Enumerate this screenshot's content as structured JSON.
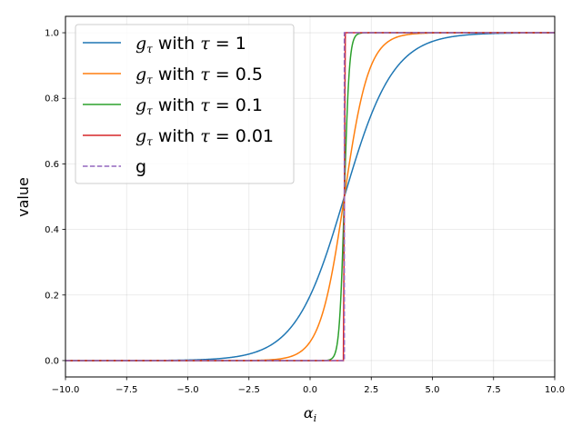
{
  "chart_data": {
    "type": "line",
    "xlabel_symbol": "α",
    "xlabel_sub": "i",
    "ylabel": "value",
    "xlim": [
      -10,
      10
    ],
    "ylim": [
      -0.05,
      1.05
    ],
    "xticks": [
      -10,
      -7.5,
      -5,
      -2.5,
      0,
      2.5,
      5,
      7.5,
      10
    ],
    "xtick_labels": [
      "−10.0",
      "−7.5",
      "−5.0",
      "−2.5",
      "0.0",
      "2.5",
      "5.0",
      "7.5",
      "10.0"
    ],
    "yticks": [
      0,
      0.2,
      0.4,
      0.6,
      0.8,
      1.0
    ],
    "ytick_labels": [
      "0.0",
      "0.2",
      "0.4",
      "0.6",
      "0.8",
      "1.0"
    ],
    "grid": true,
    "legend_position": "upper-left",
    "step_threshold": 1.4,
    "series": [
      {
        "name": "g_τ with τ = 1",
        "legend": {
          "g": "g",
          "sub": "τ",
          "mid": " with ",
          "tau": "τ",
          "eq": " = ",
          "val": "1"
        },
        "tau": 1,
        "color": "#1f77b4",
        "dashed": false
      },
      {
        "name": "g_τ with τ = 0.5",
        "legend": {
          "g": "g",
          "sub": "τ",
          "mid": " with ",
          "tau": "τ",
          "eq": " = ",
          "val": "0.5"
        },
        "tau": 0.5,
        "color": "#ff7f0e",
        "dashed": false
      },
      {
        "name": "g_τ with τ = 0.1",
        "legend": {
          "g": "g",
          "sub": "τ",
          "mid": " with ",
          "tau": "τ",
          "eq": " = ",
          "val": "0.1"
        },
        "tau": 0.1,
        "color": "#2ca02c",
        "dashed": false
      },
      {
        "name": "g_τ with τ = 0.01",
        "legend": {
          "g": "g",
          "sub": "τ",
          "mid": " with ",
          "tau": "τ",
          "eq": " = ",
          "val": "0.01"
        },
        "tau": 0.01,
        "color": "#d62728",
        "dashed": false
      },
      {
        "name": "g",
        "legend": {
          "plain": "g"
        },
        "tau": 0,
        "color": "#9467bd",
        "dashed": true
      }
    ]
  }
}
